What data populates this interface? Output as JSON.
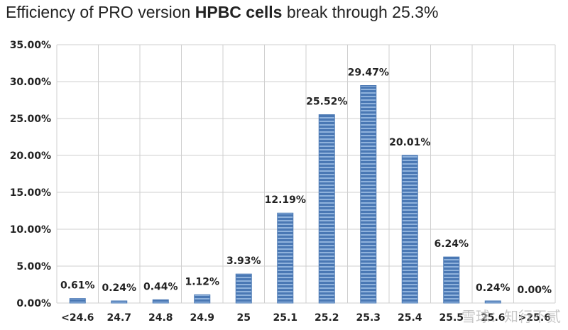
{
  "title": {
    "prefix": "Efficiency of PRO version ",
    "bold": "HPBC cells",
    "suffix": " break through 25.3%"
  },
  "watermark": "雪球：知行不贰",
  "colors": {
    "bar": "#4a78b4",
    "bar_light": "#8fb2dc",
    "grid": "#cfcfcf"
  },
  "chart_data": {
    "type": "bar",
    "title": "Efficiency of PRO version HPBC cells break through 25.3%",
    "categories": [
      "<24.6",
      "24.7",
      "24.8",
      "24.9",
      "25",
      "25.1",
      "25.2",
      "25.3",
      "25.4",
      "25.5",
      "25.6",
      ">25.6"
    ],
    "values": [
      0.61,
      0.24,
      0.44,
      1.12,
      3.93,
      12.19,
      25.52,
      29.47,
      20.01,
      6.24,
      0.24,
      0.0
    ],
    "data_labels": [
      "0.61%",
      "0.24%",
      "0.44%",
      "1.12%",
      "3.93%",
      "12.19%",
      "25.52%",
      "29.47%",
      "20.01%",
      "6.24%",
      "0.24%",
      "0.00%"
    ],
    "ylim": [
      0,
      35
    ],
    "yticks": [
      "0.00%",
      "5.00%",
      "10.00%",
      "15.00%",
      "20.00%",
      "25.00%",
      "30.00%",
      "35.00%"
    ],
    "xlabel": "",
    "ylabel": "",
    "grid": true
  }
}
